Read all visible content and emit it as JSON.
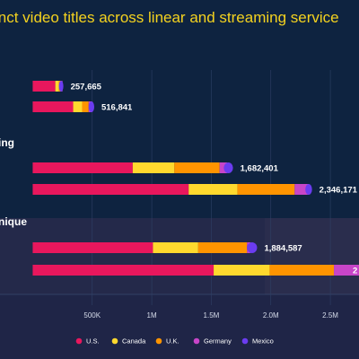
{
  "chart_data": {
    "type": "bar",
    "orientation": "horizontal",
    "stacked": true,
    "title": "inct video titles across linear and streaming service",
    "groups": [
      {
        "label": "",
        "rows": [
          {
            "total_label": "257,665",
            "values": [
              190000,
              30000,
              20000,
              10000,
              7665
            ]
          },
          {
            "total_label": "516,841",
            "values": [
              340000,
              75000,
              55000,
              30000,
              16841
            ]
          }
        ]
      },
      {
        "label": "ing",
        "rows": [
          {
            "total_label": "1,682,401",
            "values": [
              840000,
              350000,
              380000,
              65000,
              47401
            ]
          },
          {
            "total_label": "2,346,171",
            "values": [
              1310000,
              410000,
              480000,
              120000,
              26171
            ]
          }
        ]
      },
      {
        "label": "nique",
        "rows": [
          {
            "total_label": "1,884,587",
            "values": [
              1010000,
              380000,
              410000,
              30000,
              54587
            ]
          },
          {
            "total_label": "",
            "values": [
              1520000,
              470000,
              540000,
              450000,
              70000
            ]
          }
        ]
      }
    ],
    "series": [
      {
        "name": "U.S.",
        "color": "#e8175d"
      },
      {
        "name": "Canada",
        "color": "#ffd92e"
      },
      {
        "name": "U.K.",
        "color": "#ff9400"
      },
      {
        "name": "Germany",
        "color": "#c845c8"
      },
      {
        "name": "Mexico",
        "color": "#6b3cf0"
      }
    ],
    "xaxis": {
      "ticks": [
        {
          "value": 500000,
          "label": "500K"
        },
        {
          "value": 1000000,
          "label": "1M"
        },
        {
          "value": 1500000,
          "label": "1.5M"
        },
        {
          "value": 2000000,
          "label": "2.0M"
        },
        {
          "value": 2500000,
          "label": "2.5M"
        }
      ],
      "xlim": [
        -350000,
        2620000
      ]
    },
    "right_edge_label": "2",
    "legend_position": "bottom",
    "grid": true
  }
}
